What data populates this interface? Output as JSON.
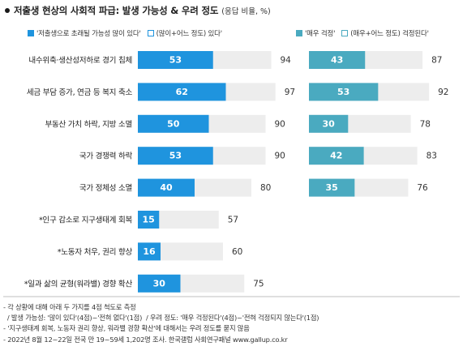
{
  "header": {
    "title": "저출생 현상의 사회적 파급: 발생 가능성 & 우려 정도",
    "subtitle": "(응답 비율, %)"
  },
  "legend": {
    "left_filled": "'저출생으로 초래될 가능성 많이 있다'",
    "left_outline": "(많이+어느 정도) 있다'",
    "right_filled": "'매우 걱정'",
    "right_outline": "(매우+어느 정도) 걱정된다'"
  },
  "colors": {
    "likelihood": "#1f94de",
    "concern": "#4aaac0",
    "remainder": "#ededed"
  },
  "chart_data": {
    "type": "bar",
    "orientation": "horizontal",
    "stacked_overlay": true,
    "categories": [
      "내수위축·생산성저하로 경기 침체",
      "세금 부담 증가, 연금 등 복지 축소",
      "부동산 가치 하락, 지방 소멸",
      "국가 경쟁력 하락",
      "국가 정체성 소멸",
      "*인구 감소로 지구생태계 회복",
      "*노동자 처우, 권리 향상",
      "*일과 삶의 균형(워라밸) 경향 확산"
    ],
    "xlim": [
      0,
      100
    ],
    "series": [
      {
        "name": "'저출생으로 초래될 가능성 많이 있다'",
        "values": [
          53,
          62,
          50,
          53,
          40,
          15,
          16,
          30
        ]
      },
      {
        "name": "(많이+어느 정도) 있다'",
        "values": [
          94,
          97,
          90,
          90,
          80,
          57,
          60,
          75
        ]
      },
      {
        "name": "'매우 걱정'",
        "values": [
          43,
          53,
          30,
          42,
          35,
          null,
          null,
          null
        ]
      },
      {
        "name": "(매우+어느 정도) 걱정된다'",
        "values": [
          87,
          92,
          78,
          83,
          76,
          null,
          null,
          null
        ]
      }
    ]
  },
  "notes": [
    "- 각 상황에 대해 아래 두 가지를 4점 척도로 측정",
    "  / 발생 가능성: '많이 있다'(4점)~'전혀 없다'(1점)  / 우려 정도: '매우 걱정된다'(4점)~'전혀 걱정되지 않는다'(1점)",
    "- '지구생태계 회복, 노동자 권리 향상, 워라밸 경향 확산'에 대해서는 우려 정도를 묻지 않음",
    "- 2022년 8월 12~22일 전국 만 19~59세 1,202명 조사. 한국갤럽 사회연구패널 www.gallup.co.kr"
  ]
}
